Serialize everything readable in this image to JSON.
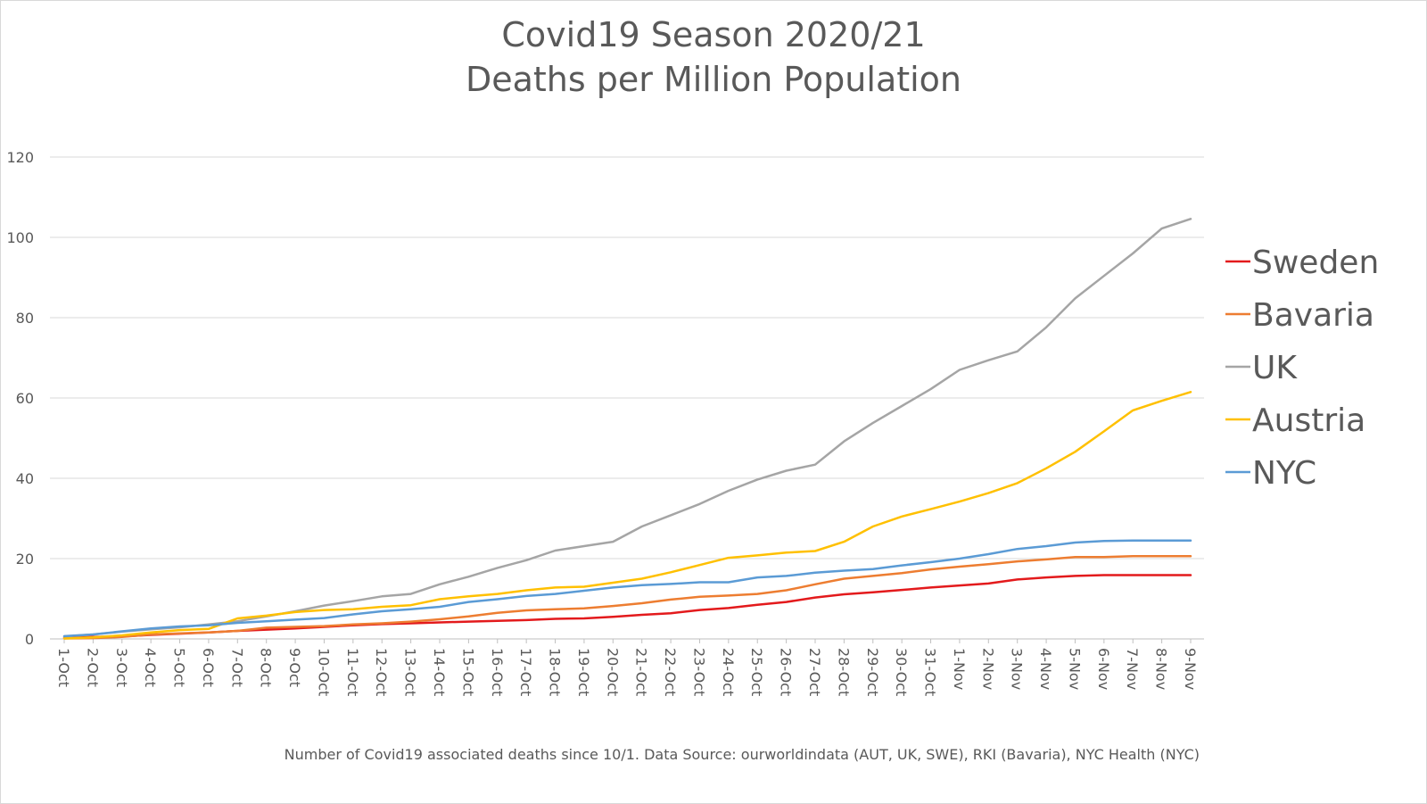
{
  "chart_data": {
    "type": "line",
    "title": "Covid19 Season 2020/21",
    "subtitle": "Deaths per Million Population",
    "xlabel": "",
    "ylabel": "",
    "ylim": [
      0,
      120
    ],
    "yticks": [
      0,
      20,
      40,
      60,
      80,
      100,
      120
    ],
    "grid": true,
    "legend_position": "right",
    "categories": [
      "1-Oct",
      "2-Oct",
      "3-Oct",
      "4-Oct",
      "5-Oct",
      "6-Oct",
      "7-Oct",
      "8-Oct",
      "9-Oct",
      "10-Oct",
      "11-Oct",
      "12-Oct",
      "13-Oct",
      "14-Oct",
      "15-Oct",
      "16-Oct",
      "17-Oct",
      "18-Oct",
      "19-Oct",
      "20-Oct",
      "21-Oct",
      "22-Oct",
      "23-Oct",
      "24-Oct",
      "25-Oct",
      "26-Oct",
      "27-Oct",
      "28-Oct",
      "29-Oct",
      "30-Oct",
      "31-Oct",
      "1-Nov",
      "2-Nov",
      "3-Nov",
      "4-Nov",
      "5-Nov",
      "6-Nov",
      "7-Nov",
      "8-Nov",
      "9-Nov"
    ],
    "series": [
      {
        "name": "Sweden",
        "color": "#e31a1c",
        "values": [
          0.3,
          0.5,
          0.6,
          1.0,
          1.3,
          1.6,
          2.0,
          2.3,
          2.6,
          3.0,
          3.4,
          3.7,
          3.9,
          4.1,
          4.3,
          4.5,
          4.7,
          5.0,
          5.1,
          5.5,
          6.0,
          6.4,
          7.2,
          7.7,
          8.5,
          9.2,
          10.3,
          11.1,
          11.6,
          12.2,
          12.8,
          13.3,
          13.8,
          14.8,
          15.3,
          15.7,
          15.9,
          15.9,
          15.9,
          15.9
        ]
      },
      {
        "name": "Bavaria",
        "color": "#ed7d31",
        "values": [
          0.1,
          0.2,
          0.5,
          1.1,
          1.4,
          1.6,
          2.0,
          2.8,
          3.0,
          3.2,
          3.6,
          3.9,
          4.3,
          4.9,
          5.6,
          6.5,
          7.1,
          7.4,
          7.6,
          8.2,
          8.9,
          9.8,
          10.5,
          10.8,
          11.2,
          12.1,
          13.6,
          15.0,
          15.7,
          16.4,
          17.3,
          18.0,
          18.6,
          19.3,
          19.8,
          20.4,
          20.4,
          20.6,
          20.6,
          20.6
        ]
      },
      {
        "name": "UK",
        "color": "#a5a5a5",
        "values": [
          0.6,
          1.1,
          1.8,
          2.4,
          2.9,
          3.6,
          4.4,
          5.6,
          6.9,
          8.3,
          9.4,
          10.6,
          11.2,
          13.6,
          15.5,
          17.7,
          19.6,
          22.0,
          23.1,
          24.2,
          28.0,
          30.8,
          33.6,
          36.9,
          39.7,
          41.9,
          43.4,
          49.2,
          53.8,
          58.0,
          62.2,
          67.0,
          69.4,
          71.6,
          77.6,
          84.8,
          90.4,
          96.0,
          102.2,
          104.6
        ]
      },
      {
        "name": "Austria",
        "color": "#ffc000",
        "values": [
          0.1,
          0.4,
          0.9,
          1.6,
          2.2,
          2.5,
          5.1,
          5.8,
          6.7,
          7.2,
          7.4,
          8.0,
          8.4,
          9.9,
          10.6,
          11.2,
          12.1,
          12.8,
          13.0,
          14.0,
          15.0,
          16.6,
          18.4,
          20.2,
          20.8,
          21.5,
          21.9,
          24.2,
          28.0,
          30.5,
          32.3,
          34.2,
          36.3,
          38.8,
          42.5,
          46.6,
          51.7,
          56.9,
          59.3,
          61.5
        ]
      },
      {
        "name": "NYC",
        "color": "#5b9bd5",
        "values": [
          0.7,
          1.1,
          1.9,
          2.6,
          3.1,
          3.4,
          4.0,
          4.4,
          4.8,
          5.2,
          6.1,
          6.9,
          7.4,
          8.0,
          9.2,
          9.9,
          10.7,
          11.2,
          12.0,
          12.8,
          13.4,
          13.7,
          14.1,
          14.1,
          15.3,
          15.7,
          16.5,
          17.0,
          17.4,
          18.3,
          19.1,
          20.0,
          21.1,
          22.4,
          23.1,
          24.0,
          24.4,
          24.5,
          24.5,
          24.5
        ]
      }
    ],
    "footnote": "Number of Covid19 associated deaths since 10/1. Data Source: ourworldindata  (AUT, UK, SWE), RKI (Bavaria), NYC Health (NYC)"
  }
}
